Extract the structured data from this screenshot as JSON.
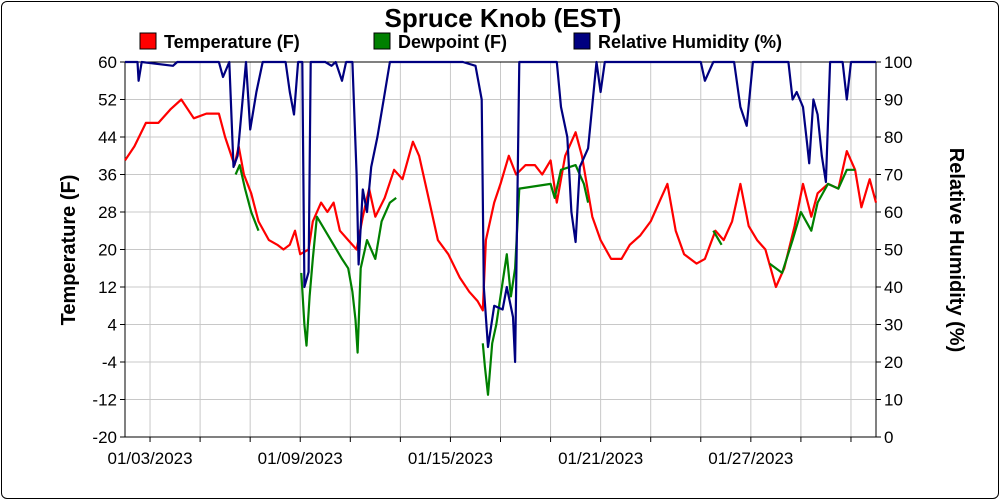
{
  "chart_data": {
    "type": "line",
    "title": "Spruce Knob (EST)",
    "ylabel": "Temperature (F)",
    "y2label": "Relative Humidity (%)",
    "ylim": [
      -20,
      60
    ],
    "y2lim": [
      0,
      100
    ],
    "y_ticks": [
      "60",
      "52",
      "44",
      "36",
      "28",
      "20",
      "12",
      "4",
      "-4",
      "-12",
      "-20"
    ],
    "y2_ticks": [
      "100",
      "90",
      "80",
      "70",
      "60",
      "50",
      "40",
      "30",
      "20",
      "10",
      "0"
    ],
    "x_tick_labels": [
      "01/03/2023",
      "01/09/2023",
      "01/15/2023",
      "01/21/2023",
      "01/27/2023"
    ],
    "x_range": [
      "2023-01-02T00:00",
      "2023-02-01T00:00"
    ],
    "grid": true,
    "legend_placement": "top",
    "series": [
      {
        "name": "Temperature (F)",
        "color": "#ff0000",
        "axis": "left",
        "points": [
          [
            "2023-01-02T00:00",
            39
          ],
          [
            "2023-01-02T09:00",
            42
          ],
          [
            "2023-01-02T20:00",
            47
          ],
          [
            "2023-01-03T08:00",
            47
          ],
          [
            "2023-01-03T20:00",
            50
          ],
          [
            "2023-01-04T06:00",
            52
          ],
          [
            "2023-01-04T18:00",
            48
          ],
          [
            "2023-01-05T06:00",
            49
          ],
          [
            "2023-01-05T18:00",
            49
          ],
          [
            "2023-01-06T00:00",
            44
          ],
          [
            "2023-01-06T09:00",
            38
          ],
          [
            "2023-01-06T13:00",
            42
          ],
          [
            "2023-01-06T18:00",
            36
          ],
          [
            "2023-01-07T01:00",
            32
          ],
          [
            "2023-01-07T08:00",
            26
          ],
          [
            "2023-01-07T18:00",
            22
          ],
          [
            "2023-01-08T02:00",
            21
          ],
          [
            "2023-01-08T08:00",
            20
          ],
          [
            "2023-01-08T14:00",
            21
          ],
          [
            "2023-01-08T19:00",
            24
          ],
          [
            "2023-01-09T00:00",
            19
          ],
          [
            "2023-01-09T08:00",
            20
          ],
          [
            "2023-01-09T12:00",
            26
          ],
          [
            "2023-01-09T20:00",
            30
          ],
          [
            "2023-01-10T02:00",
            28
          ],
          [
            "2023-01-10T08:00",
            30
          ],
          [
            "2023-01-10T14:00",
            24
          ],
          [
            "2023-01-10T22:00",
            22
          ],
          [
            "2023-01-11T06:00",
            20
          ],
          [
            "2023-01-11T12:00",
            27
          ],
          [
            "2023-01-11T18:00",
            33
          ],
          [
            "2023-01-12T00:00",
            27
          ],
          [
            "2023-01-12T09:00",
            31
          ],
          [
            "2023-01-12T18:00",
            37
          ],
          [
            "2023-01-13T02:00",
            35
          ],
          [
            "2023-01-13T12:00",
            43
          ],
          [
            "2023-01-13T18:00",
            40
          ],
          [
            "2023-01-14T02:00",
            32
          ],
          [
            "2023-01-14T12:00",
            22
          ],
          [
            "2023-01-14T22:00",
            19
          ],
          [
            "2023-01-15T09:00",
            14
          ],
          [
            "2023-01-15T18:00",
            11
          ],
          [
            "2023-01-16T02:00",
            9
          ],
          [
            "2023-01-16T07:00",
            7
          ],
          [
            "2023-01-16T10:00",
            22
          ],
          [
            "2023-01-16T18:00",
            30
          ],
          [
            "2023-01-17T00:00",
            34
          ],
          [
            "2023-01-17T08:00",
            40
          ],
          [
            "2023-01-17T15:00",
            36
          ],
          [
            "2023-01-18T00:00",
            38
          ],
          [
            "2023-01-18T09:00",
            38
          ],
          [
            "2023-01-18T16:00",
            36
          ],
          [
            "2023-01-19T00:00",
            39
          ],
          [
            "2023-01-19T06:00",
            30
          ],
          [
            "2023-01-19T14:00",
            40
          ],
          [
            "2023-01-20T00:00",
            45
          ],
          [
            "2023-01-20T06:00",
            40
          ],
          [
            "2023-01-20T16:00",
            27
          ],
          [
            "2023-01-21T00:00",
            22
          ],
          [
            "2023-01-21T10:00",
            18
          ],
          [
            "2023-01-21T20:00",
            18
          ],
          [
            "2023-01-22T04:00",
            21
          ],
          [
            "2023-01-22T14:00",
            23
          ],
          [
            "2023-01-23T00:00",
            26
          ],
          [
            "2023-01-23T10:00",
            31
          ],
          [
            "2023-01-23T16:00",
            34
          ],
          [
            "2023-01-24T00:00",
            24
          ],
          [
            "2023-01-24T08:00",
            19
          ],
          [
            "2023-01-24T20:00",
            17
          ],
          [
            "2023-01-25T04:00",
            18
          ],
          [
            "2023-01-25T14:00",
            24
          ],
          [
            "2023-01-25T22:00",
            22
          ],
          [
            "2023-01-26T06:00",
            26
          ],
          [
            "2023-01-26T14:00",
            34
          ],
          [
            "2023-01-26T22:00",
            25
          ],
          [
            "2023-01-27T06:00",
            22
          ],
          [
            "2023-01-27T14:00",
            20
          ],
          [
            "2023-01-28T00:00",
            12
          ],
          [
            "2023-01-28T08:00",
            16
          ],
          [
            "2023-01-28T18:00",
            25
          ],
          [
            "2023-01-29T02:00",
            34
          ],
          [
            "2023-01-29T10:00",
            27
          ],
          [
            "2023-01-29T16:00",
            32
          ],
          [
            "2023-01-30T02:00",
            34
          ],
          [
            "2023-01-30T12:00",
            33
          ],
          [
            "2023-01-30T20:00",
            41
          ],
          [
            "2023-01-31T04:00",
            37
          ],
          [
            "2023-01-31T10:00",
            29
          ],
          [
            "2023-01-31T18:00",
            35
          ],
          [
            "2023-02-01T00:00",
            30
          ]
        ]
      },
      {
        "name": "Dewpoint (F)",
        "color": "#008000",
        "axis": "left",
        "points": [
          [
            "2023-01-06T10:00",
            36
          ],
          [
            "2023-01-06T14:00",
            38
          ],
          [
            "2023-01-06T19:00",
            33
          ],
          [
            "2023-01-07T01:00",
            28
          ],
          [
            "2023-01-07T08:00",
            24
          ],
          [
            "2023-01-09T01:00",
            15
          ],
          [
            "2023-01-09T04:00",
            4
          ],
          [
            "2023-01-09T06:00",
            -0.5
          ],
          [
            "2023-01-09T09:00",
            10
          ],
          [
            "2023-01-09T12:00",
            18
          ],
          [
            "2023-01-09T16:00",
            27
          ],
          [
            "2023-01-10T16:00",
            18
          ],
          [
            "2023-01-10T22:00",
            16
          ],
          [
            "2023-01-11T02:00",
            11
          ],
          [
            "2023-01-11T05:00",
            5
          ],
          [
            "2023-01-11T07:00",
            -2
          ],
          [
            "2023-01-11T10:00",
            16
          ],
          [
            "2023-01-11T16:00",
            22
          ],
          [
            "2023-01-12T00:00",
            18
          ],
          [
            "2023-01-12T06:00",
            26
          ],
          [
            "2023-01-12T14:00",
            30
          ],
          [
            "2023-01-12T20:00",
            31
          ],
          [
            "2023-01-16T07:00",
            0
          ],
          [
            "2023-01-16T09:00",
            -5
          ],
          [
            "2023-01-16T12:00",
            -11
          ],
          [
            "2023-01-16T16:00",
            0
          ],
          [
            "2023-01-16T20:00",
            4
          ],
          [
            "2023-01-17T02:00",
            13
          ],
          [
            "2023-01-17T06:00",
            19
          ],
          [
            "2023-01-17T10:00",
            10
          ],
          [
            "2023-01-17T14:00",
            16
          ],
          [
            "2023-01-17T18:00",
            33
          ],
          [
            "2023-01-19T00:00",
            34
          ],
          [
            "2023-01-19T04:00",
            31
          ],
          [
            "2023-01-19T10:00",
            37
          ],
          [
            "2023-01-20T00:00",
            38
          ],
          [
            "2023-01-20T08:00",
            34
          ],
          [
            "2023-01-20T12:00",
            30
          ],
          [
            "2023-01-25T12:00",
            24
          ],
          [
            "2023-01-25T20:00",
            21
          ],
          [
            "2023-01-27T18:00",
            17
          ],
          [
            "2023-01-28T06:00",
            15
          ],
          [
            "2023-01-28T16:00",
            22
          ],
          [
            "2023-01-29T00:00",
            28
          ],
          [
            "2023-01-29T10:00",
            24
          ],
          [
            "2023-01-29T16:00",
            30
          ],
          [
            "2023-01-30T02:00",
            34
          ],
          [
            "2023-01-30T12:00",
            33
          ],
          [
            "2023-01-30T20:00",
            37
          ],
          [
            "2023-01-31T04:00",
            37
          ]
        ]
      },
      {
        "name": "Relative Humidity (%)",
        "color": "#000080",
        "axis": "right",
        "points": [
          [
            "2023-01-02T00:00",
            100
          ],
          [
            "2023-01-02T12:00",
            100
          ],
          [
            "2023-01-02T13:00",
            95
          ],
          [
            "2023-01-02T16:00",
            100
          ],
          [
            "2023-01-03T22:00",
            99
          ],
          [
            "2023-01-04T02:00",
            100
          ],
          [
            "2023-01-05T18:00",
            100
          ],
          [
            "2023-01-05T22:00",
            96
          ],
          [
            "2023-01-06T04:00",
            100
          ],
          [
            "2023-01-06T08:00",
            72
          ],
          [
            "2023-01-06T12:00",
            75
          ],
          [
            "2023-01-06T20:00",
            100
          ],
          [
            "2023-01-07T00:00",
            82
          ],
          [
            "2023-01-07T06:00",
            92
          ],
          [
            "2023-01-07T12:00",
            100
          ],
          [
            "2023-01-08T10:00",
            100
          ],
          [
            "2023-01-08T14:00",
            92
          ],
          [
            "2023-01-08T18:00",
            86
          ],
          [
            "2023-01-08T22:00",
            100
          ],
          [
            "2023-01-09T02:00",
            100
          ],
          [
            "2023-01-09T04:00",
            40
          ],
          [
            "2023-01-09T08:00",
            44
          ],
          [
            "2023-01-09T10:00",
            100
          ],
          [
            "2023-01-10T00:00",
            100
          ],
          [
            "2023-01-10T06:00",
            99
          ],
          [
            "2023-01-10T10:00",
            100
          ],
          [
            "2023-01-10T16:00",
            95
          ],
          [
            "2023-01-10T20:00",
            100
          ],
          [
            "2023-01-11T02:00",
            100
          ],
          [
            "2023-01-11T06:00",
            70
          ],
          [
            "2023-01-11T08:00",
            46
          ],
          [
            "2023-01-11T12:00",
            66
          ],
          [
            "2023-01-11T16:00",
            60
          ],
          [
            "2023-01-11T20:00",
            72
          ],
          [
            "2023-01-12T02:00",
            80
          ],
          [
            "2023-01-12T08:00",
            90
          ],
          [
            "2023-01-12T14:00",
            100
          ],
          [
            "2023-01-15T12:00",
            100
          ],
          [
            "2023-01-16T00:00",
            99
          ],
          [
            "2023-01-16T06:00",
            90
          ],
          [
            "2023-01-16T08:00",
            40
          ],
          [
            "2023-01-16T12:00",
            24
          ],
          [
            "2023-01-16T18:00",
            35
          ],
          [
            "2023-01-17T02:00",
            34
          ],
          [
            "2023-01-17T06:00",
            40
          ],
          [
            "2023-01-17T12:00",
            32
          ],
          [
            "2023-01-17T14:00",
            20
          ],
          [
            "2023-01-17T18:00",
            100
          ],
          [
            "2023-01-19T06:00",
            100
          ],
          [
            "2023-01-19T10:00",
            88
          ],
          [
            "2023-01-19T16:00",
            80
          ],
          [
            "2023-01-19T20:00",
            60
          ],
          [
            "2023-01-20T00:00",
            52
          ],
          [
            "2023-01-20T04:00",
            72
          ],
          [
            "2023-01-20T12:00",
            77
          ],
          [
            "2023-01-20T20:00",
            100
          ],
          [
            "2023-01-21T00:00",
            92
          ],
          [
            "2023-01-21T04:00",
            100
          ],
          [
            "2023-01-22T12:00",
            100
          ],
          [
            "2023-01-23T00:00",
            100
          ],
          [
            "2023-01-24T00:00",
            100
          ],
          [
            "2023-01-25T00:00",
            100
          ],
          [
            "2023-01-25T04:00",
            95
          ],
          [
            "2023-01-25T12:00",
            100
          ],
          [
            "2023-01-26T08:00",
            100
          ],
          [
            "2023-01-26T14:00",
            88
          ],
          [
            "2023-01-26T20:00",
            83
          ],
          [
            "2023-01-27T02:00",
            100
          ],
          [
            "2023-01-28T12:00",
            100
          ],
          [
            "2023-01-28T16:00",
            90
          ],
          [
            "2023-01-28T20:00",
            92
          ],
          [
            "2023-01-29T02:00",
            88
          ],
          [
            "2023-01-29T06:00",
            78
          ],
          [
            "2023-01-29T08:00",
            73
          ],
          [
            "2023-01-29T12:00",
            90
          ],
          [
            "2023-01-29T16:00",
            86
          ],
          [
            "2023-01-29T20:00",
            75
          ],
          [
            "2023-01-30T00:00",
            68
          ],
          [
            "2023-01-30T04:00",
            100
          ],
          [
            "2023-01-30T16:00",
            100
          ],
          [
            "2023-01-30T20:00",
            90
          ],
          [
            "2023-01-31T00:00",
            100
          ],
          [
            "2023-02-01T00:00",
            100
          ]
        ]
      }
    ]
  }
}
